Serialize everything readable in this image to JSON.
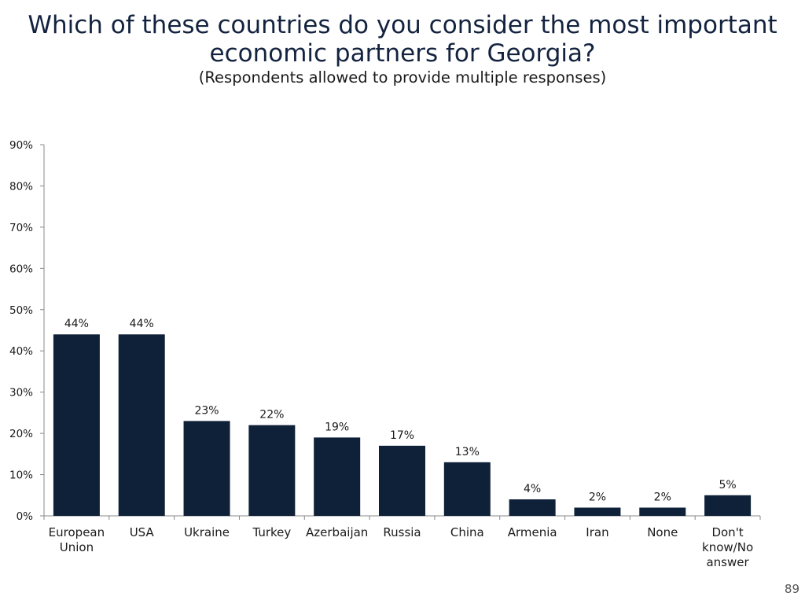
{
  "slide": {
    "title_line1": "Which of these countries do you consider the most important",
    "title_line2": "economic partners for Georgia?",
    "subtitle": "(Respondents allowed to provide multiple responses)",
    "page_number": "89"
  },
  "colors": {
    "bar": "#0e2138",
    "axis": "#888888"
  },
  "chart_data": {
    "type": "bar",
    "title": "Which of these countries do you consider the most important economic partners for Georgia?",
    "subtitle": "(Respondents allowed to provide multiple responses)",
    "categories": [
      [
        "European",
        "Union"
      ],
      [
        "USA"
      ],
      [
        "Ukraine"
      ],
      [
        "Turkey"
      ],
      [
        "Azerbaijan"
      ],
      [
        "Russia"
      ],
      [
        "China"
      ],
      [
        "Armenia"
      ],
      [
        "Iran"
      ],
      [
        "None"
      ],
      [
        "Don't",
        "know/No",
        "answer"
      ]
    ],
    "values": [
      44,
      44,
      23,
      22,
      19,
      17,
      13,
      4,
      2,
      2,
      5
    ],
    "value_labels": [
      "44%",
      "44%",
      "23%",
      "22%",
      "19%",
      "17%",
      "13%",
      "4%",
      "2%",
      "2%",
      "5%"
    ],
    "yticks": [
      "0%",
      "10%",
      "20%",
      "30%",
      "40%",
      "50%",
      "60%",
      "70%",
      "80%",
      "90%"
    ],
    "ylim": [
      0,
      90
    ],
    "grid": false,
    "legend": "none"
  }
}
